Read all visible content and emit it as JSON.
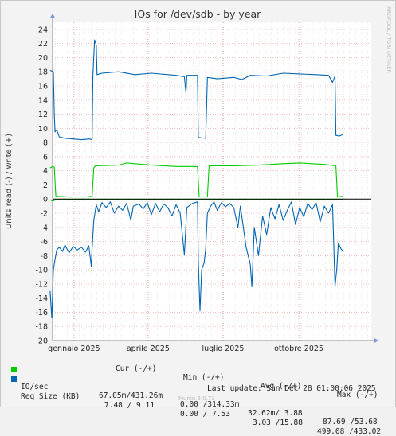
{
  "chart_data": {
    "type": "line",
    "title": "IOs for /dev/sdb - by year",
    "ylabel": "Units read (-) / write (+)",
    "side_label": "RRDTOOL / TOBI OETIKER",
    "ylim": [
      -20,
      25
    ],
    "yticks": [
      24,
      22,
      20,
      18,
      16,
      14,
      12,
      10,
      8,
      6,
      4,
      2,
      0,
      -2,
      -4,
      -6,
      -8,
      -10,
      -12,
      -14,
      -16,
      -18,
      -20
    ],
    "xlim": [
      "2024-12-06",
      "2025-12-28"
    ],
    "xticks": [
      {
        "label": "gennaio 2025",
        "date": "2025-01-01"
      },
      {
        "label": "aprile 2025",
        "date": "2025-04-01"
      },
      {
        "label": "luglio 2025",
        "date": "2025-07-01"
      },
      {
        "label": "ottobre 2025",
        "date": "2025-10-01"
      }
    ],
    "series": [
      {
        "name": "IO/sec",
        "color": "#00cc00",
        "write": [
          [
            -3,
            4.4
          ],
          [
            0,
            4.6
          ],
          [
            2,
            4.5
          ],
          [
            4,
            0.4
          ],
          [
            20,
            0.3
          ],
          [
            40,
            0.3
          ],
          [
            48,
            0.4
          ],
          [
            50,
            4.4
          ],
          [
            52,
            4.7
          ],
          [
            80,
            4.8
          ],
          [
            90,
            5.1
          ],
          [
            120,
            4.8
          ],
          [
            150,
            4.6
          ],
          [
            176,
            4.6
          ],
          [
            178,
            0.3
          ],
          [
            188,
            0.3
          ],
          [
            190,
            4.7
          ],
          [
            220,
            4.7
          ],
          [
            250,
            4.8
          ],
          [
            280,
            5.0
          ],
          [
            300,
            5.1
          ],
          [
            330,
            4.9
          ],
          [
            344,
            4.7
          ],
          [
            346,
            0.3
          ],
          [
            352,
            0.4
          ]
        ],
        "read": [
          [
            -3,
            -0.1
          ],
          [
            0,
            -0.3
          ],
          [
            2,
            -0.2
          ],
          [
            4,
            -0.05
          ],
          [
            48,
            -0.05
          ],
          [
            50,
            -0.1
          ],
          [
            176,
            -0.1
          ],
          [
            178,
            -0.05
          ],
          [
            188,
            -0.05
          ],
          [
            190,
            -0.1
          ],
          [
            344,
            -0.1
          ],
          [
            346,
            -0.05
          ],
          [
            352,
            -0.05
          ]
        ]
      },
      {
        "name": "Req Size (KB)",
        "color": "#0066b3",
        "write": [
          [
            -3,
            18.2
          ],
          [
            1,
            18.0
          ],
          [
            2,
            12.0
          ],
          [
            3,
            9.5
          ],
          [
            5,
            9.8
          ],
          [
            8,
            8.8
          ],
          [
            15,
            8.6
          ],
          [
            25,
            8.5
          ],
          [
            35,
            8.4
          ],
          [
            45,
            8.5
          ],
          [
            48,
            8.4
          ],
          [
            49,
            17.5
          ],
          [
            51,
            22.5
          ],
          [
            53,
            21.8
          ],
          [
            54,
            17.6
          ],
          [
            60,
            17.8
          ],
          [
            80,
            18.0
          ],
          [
            100,
            17.6
          ],
          [
            120,
            17.8
          ],
          [
            150,
            17.5
          ],
          [
            160,
            17.3
          ],
          [
            162,
            15.0
          ],
          [
            163,
            17.5
          ],
          [
            176,
            17.5
          ],
          [
            177,
            8.7
          ],
          [
            186,
            8.6
          ],
          [
            188,
            17.2
          ],
          [
            200,
            17.0
          ],
          [
            220,
            17.2
          ],
          [
            230,
            16.9
          ],
          [
            240,
            17.5
          ],
          [
            260,
            17.4
          ],
          [
            280,
            17.8
          ],
          [
            300,
            17.7
          ],
          [
            320,
            17.6
          ],
          [
            335,
            17.5
          ],
          [
            340,
            16.5
          ],
          [
            343,
            17.4
          ],
          [
            344,
            9.0
          ],
          [
            348,
            8.9
          ],
          [
            352,
            9.1
          ]
        ],
        "read": [
          [
            -3,
            -13.0
          ],
          [
            -1,
            -16.8
          ],
          [
            1,
            -10.0
          ],
          [
            3,
            -8.5
          ],
          [
            5,
            -7.2
          ],
          [
            8,
            -6.8
          ],
          [
            12,
            -7.4
          ],
          [
            15,
            -6.5
          ],
          [
            20,
            -7.6
          ],
          [
            25,
            -6.7
          ],
          [
            30,
            -7.2
          ],
          [
            35,
            -6.8
          ],
          [
            40,
            -7.5
          ],
          [
            44,
            -6.6
          ],
          [
            47,
            -9.5
          ],
          [
            48,
            -7.0
          ],
          [
            50,
            -3.0
          ],
          [
            53,
            -0.8
          ],
          [
            56,
            -1.8
          ],
          [
            60,
            -0.5
          ],
          [
            65,
            -1.2
          ],
          [
            70,
            -0.4
          ],
          [
            75,
            -2.0
          ],
          [
            80,
            -1.0
          ],
          [
            85,
            -1.6
          ],
          [
            90,
            -0.6
          ],
          [
            95,
            -3.0
          ],
          [
            98,
            -1.0
          ],
          [
            105,
            -0.7
          ],
          [
            110,
            -1.4
          ],
          [
            115,
            -0.5
          ],
          [
            120,
            -2.2
          ],
          [
            125,
            -0.6
          ],
          [
            130,
            -1.8
          ],
          [
            135,
            -0.7
          ],
          [
            140,
            -1.2
          ],
          [
            145,
            -2.4
          ],
          [
            150,
            -0.8
          ],
          [
            155,
            -2.0
          ],
          [
            160,
            -7.9
          ],
          [
            163,
            -1.2
          ],
          [
            170,
            -0.6
          ],
          [
            176,
            -0.4
          ],
          [
            177,
            -8.8
          ],
          [
            179,
            -15.8
          ],
          [
            181,
            -10.0
          ],
          [
            184,
            -9.0
          ],
          [
            186,
            -7.0
          ],
          [
            188,
            -2.0
          ],
          [
            192,
            -1.0
          ],
          [
            196,
            -0.4
          ],
          [
            200,
            -1.6
          ],
          [
            205,
            -0.5
          ],
          [
            210,
            -1.1
          ],
          [
            215,
            -0.6
          ],
          [
            220,
            -1.2
          ],
          [
            225,
            -4.0
          ],
          [
            228,
            -1.0
          ],
          [
            235,
            -6.8
          ],
          [
            240,
            -9.2
          ],
          [
            242,
            -12.4
          ],
          [
            245,
            -4.0
          ],
          [
            250,
            -8.0
          ],
          [
            255,
            -2.4
          ],
          [
            260,
            -5.0
          ],
          [
            265,
            -1.2
          ],
          [
            270,
            -2.8
          ],
          [
            275,
            -0.8
          ],
          [
            280,
            -3.0
          ],
          [
            285,
            -1.6
          ],
          [
            290,
            -0.4
          ],
          [
            295,
            -3.6
          ],
          [
            300,
            -1.2
          ],
          [
            305,
            -2.5
          ],
          [
            310,
            -0.6
          ],
          [
            315,
            -1.5
          ],
          [
            320,
            -0.5
          ],
          [
            325,
            -3.2
          ],
          [
            330,
            -1.0
          ],
          [
            335,
            -2.0
          ],
          [
            340,
            -0.8
          ],
          [
            343,
            -12.4
          ],
          [
            345,
            -10.0
          ],
          [
            347,
            -6.2
          ],
          [
            350,
            -7.0
          ],
          [
            352,
            -7.3
          ]
        ]
      }
    ],
    "zero_line_color": "#000000",
    "grid": true
  },
  "stats": {
    "headers": [
      "Cur (-/+)",
      "Min (-/+)",
      "Avg (-/+)",
      "Max (-/+)"
    ],
    "rows": [
      {
        "name": "IO/sec",
        "color": "#00cc00",
        "cur": "67.05m/431.26m",
        "min": "0.00 /314.33m",
        "avg": "32.62m/ 3.88",
        "max": "87.69 /53.68"
      },
      {
        "name": "Req Size (KB)",
        "color": "#0066b3",
        "cur": "7.48 / 9.11",
        "min": "0.00 / 7.53",
        "avg": "3.03 /15.88",
        "max": "499.08 /433.02"
      }
    ],
    "last_update": "Last update: Sun Dec 28 01:00:06 2025",
    "munin": "Munin 2.0.73"
  }
}
